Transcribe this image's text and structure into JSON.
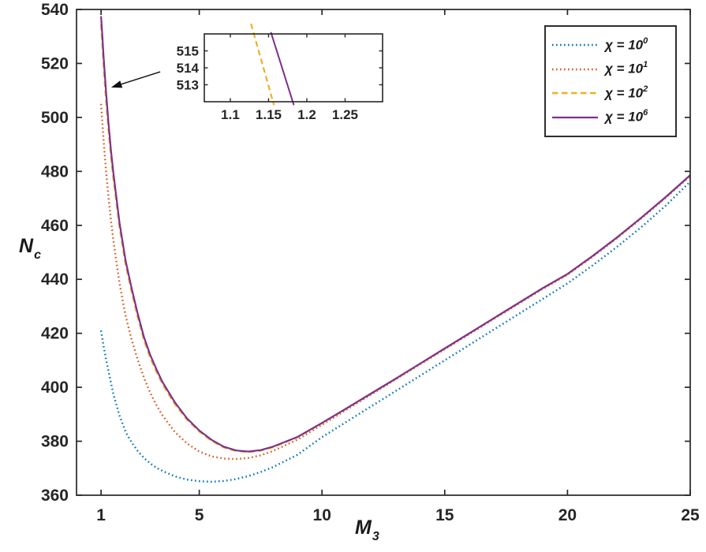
{
  "figure": {
    "bg": "#ffffff",
    "axis_color": "#262626",
    "tick_label_color": "#262626"
  },
  "axes": {
    "xlabel": {
      "base": "M",
      "sub": "3"
    },
    "ylabel": {
      "base": "N",
      "sub": "c"
    },
    "xticks": [
      1,
      5,
      10,
      15,
      20,
      25
    ],
    "yticks": [
      360,
      380,
      400,
      420,
      440,
      460,
      480,
      500,
      520,
      540
    ]
  },
  "legend": {
    "position": "top-right",
    "items": [
      {
        "label": "χ = 10",
        "exp": "0",
        "color": "#0072BD",
        "linestyle": "dotted"
      },
      {
        "label": "χ = 10",
        "exp": "1",
        "color": "#D95319",
        "linestyle": "dotted"
      },
      {
        "label": "χ = 10",
        "exp": "2",
        "color": "#EDB120",
        "linestyle": "dashed"
      },
      {
        "label": "χ = 10",
        "exp": "6",
        "color": "#7E2F8E",
        "linestyle": "solid"
      }
    ]
  },
  "chart_data": {
    "type": "line",
    "title": "",
    "xlabel": "M_3",
    "ylabel": "N_c",
    "xlim": [
      0,
      25
    ],
    "ylim": [
      360,
      540
    ],
    "grid": false,
    "legend_position": "top-right",
    "series": [
      {
        "name": "χ = 10^0",
        "color": "#0072BD",
        "linestyle": "dotted",
        "x": [
          1,
          1.1,
          1.2,
          1.3,
          1.5,
          1.75,
          2,
          2.25,
          2.5,
          2.75,
          3,
          3.25,
          3.5,
          4,
          4.5,
          5,
          5.5,
          6,
          6.5,
          7,
          7.5,
          8,
          9,
          10,
          11,
          12,
          13,
          14,
          15,
          16,
          17,
          18,
          19,
          20,
          21,
          22,
          23,
          24,
          25
        ],
        "y": [
          421,
          415.5,
          410.5,
          406,
          397.5,
          389.5,
          383.5,
          379.5,
          376.3,
          373.8,
          371.8,
          370.2,
          369,
          367,
          365.8,
          365.2,
          365,
          365.3,
          366,
          367.1,
          368.6,
          370.4,
          375,
          381.5,
          387.2,
          392.9,
          398.6,
          404.3,
          410,
          415.7,
          421.4,
          427.1,
          432.8,
          438.5,
          445,
          451.9,
          459.3,
          467.3,
          476.2
        ]
      },
      {
        "name": "χ = 10^1",
        "color": "#D95319",
        "linestyle": "dotted",
        "x": [
          1,
          1.05,
          1.1,
          1.15,
          1.2,
          1.3,
          1.4,
          1.5,
          1.75,
          2,
          2.25,
          2.5,
          2.75,
          3,
          3.25,
          3.5,
          4,
          4.5,
          5,
          5.5,
          6,
          6.5,
          7,
          7.5,
          8,
          9,
          10,
          11,
          12,
          13,
          14,
          15,
          16,
          17,
          18,
          19,
          20,
          21,
          22,
          23,
          24,
          25
        ],
        "y": [
          505,
          498.5,
          492,
          486,
          480.5,
          470.5,
          462,
          454.5,
          438.5,
          426.5,
          417.5,
          410,
          403.5,
          398,
          393.5,
          389.6,
          383.5,
          379.2,
          376.2,
          374.4,
          373.6,
          373.4,
          373.8,
          374.8,
          376.4,
          380.6,
          386.1,
          391.7,
          397.3,
          402.9,
          408.5,
          414.1,
          419.7,
          425.3,
          430.9,
          436.5,
          441.7,
          448.2,
          455.1,
          462.5,
          470.2,
          478.3
        ]
      },
      {
        "name": "χ = 10^2",
        "color": "#EDB120",
        "linestyle": "dashed",
        "x": [
          1,
          1.05,
          1.1,
          1.15,
          1.2,
          1.3,
          1.4,
          1.5,
          1.75,
          2,
          2.25,
          2.5,
          2.75,
          3,
          3.25,
          3.5,
          4,
          4.5,
          5,
          5.5,
          6,
          6.5,
          7,
          7.5,
          8,
          9,
          10,
          11,
          12,
          13,
          14,
          15,
          16,
          17,
          18,
          19,
          20,
          21,
          22,
          23,
          24,
          25
        ],
        "y": [
          534.5,
          527.5,
          520,
          513,
          507,
          495.5,
          486,
          477.5,
          459.5,
          445.5,
          435.2,
          425.8,
          417.4,
          411,
          405.9,
          401.2,
          393.8,
          388,
          383.6,
          380.2,
          377.7,
          376.4,
          376,
          376.5,
          377.8,
          381.5,
          386.7,
          392.1,
          397.6,
          403.1,
          408.7,
          414.3,
          419.9,
          425.5,
          431.1,
          436.7,
          441.9,
          448.4,
          455.3,
          462.7,
          470.4,
          478.5
        ]
      },
      {
        "name": "χ = 10^6",
        "color": "#7E2F8E",
        "linestyle": "solid",
        "x": [
          1,
          1.05,
          1.1,
          1.15,
          1.2,
          1.3,
          1.4,
          1.5,
          1.75,
          2,
          2.25,
          2.5,
          2.75,
          3,
          3.25,
          3.5,
          4,
          4.5,
          5,
          5.5,
          6,
          6.5,
          7,
          7.5,
          8,
          9,
          10,
          11,
          12,
          13,
          14,
          15,
          16,
          17,
          18,
          19,
          20,
          21,
          22,
          23,
          24,
          25
        ],
        "y": [
          537.5,
          530.5,
          523,
          516.3,
          510,
          498,
          488,
          479.5,
          461,
          447,
          436.5,
          427,
          418.5,
          412,
          406.8,
          402,
          394.5,
          388.5,
          384,
          380.5,
          378,
          376.6,
          376.2,
          376.7,
          378,
          381.6,
          386.8,
          392.2,
          397.7,
          403.2,
          408.8,
          414.4,
          420,
          425.6,
          431.2,
          436.8,
          442,
          448.5,
          455.4,
          462.8,
          470.5,
          478.6
        ]
      }
    ],
    "annotations": [
      {
        "type": "arrow",
        "from": [
          3.41,
          516.9
        ],
        "to": [
          1.41,
          511.1
        ]
      }
    ],
    "inset": {
      "xlim": [
        1.066,
        1.299
      ],
      "ylim": [
        512,
        516
      ],
      "xticks": [
        "1.1",
        "1.15",
        "1.2",
        "1.25"
      ],
      "yticks": [
        513,
        514,
        515
      ],
      "series": [
        {
          "name": "χ = 10^2",
          "color": "#EDB120",
          "linestyle": "dashed",
          "x": [
            1.127,
            1.157
          ],
          "y": [
            516.6,
            511.8
          ]
        },
        {
          "name": "χ = 10^6",
          "color": "#7E2F8E",
          "linestyle": "solid",
          "x": [
            1.153,
            1.183
          ],
          "y": [
            516.1,
            511.8
          ]
        }
      ]
    }
  }
}
